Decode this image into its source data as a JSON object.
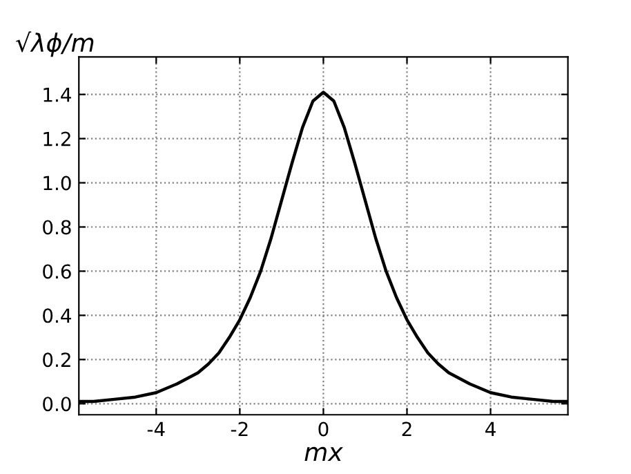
{
  "chart_data": {
    "type": "line",
    "xlabel": "mx",
    "ylabel": "√λϕ/m",
    "x": [
      -5.85,
      -5.5,
      -5,
      -4.5,
      -4,
      -3.5,
      -3,
      -2.75,
      -2.5,
      -2.25,
      -2,
      -1.75,
      -1.5,
      -1.25,
      -1,
      -0.75,
      -0.5,
      -0.25,
      0,
      0.25,
      0.5,
      0.75,
      1,
      1.25,
      1.5,
      1.75,
      2,
      2.25,
      2.5,
      2.75,
      3,
      3.5,
      4,
      4.5,
      5,
      5.5,
      5.85
    ],
    "series": [
      {
        "color": "#000000",
        "values": [
          0.01,
          0.01,
          0.02,
          0.03,
          0.05,
          0.09,
          0.14,
          0.18,
          0.23,
          0.3,
          0.38,
          0.48,
          0.6,
          0.75,
          0.92,
          1.09,
          1.25,
          1.37,
          1.41,
          1.37,
          1.25,
          1.09,
          0.92,
          0.75,
          0.6,
          0.48,
          0.38,
          0.3,
          0.23,
          0.18,
          0.14,
          0.09,
          0.05,
          0.03,
          0.02,
          0.01,
          0.01
        ]
      }
    ],
    "xlim": [
      -5.85,
      5.85
    ],
    "ylim": [
      -0.05,
      1.57
    ],
    "xticks": [
      -4,
      -2,
      0,
      2,
      4
    ],
    "yticks": [
      {
        "value": 0,
        "label": "0.0"
      },
      {
        "value": 0.2,
        "label": "0.2"
      },
      {
        "value": 0.4,
        "label": "0.4"
      },
      {
        "value": 0.6,
        "label": "0.6"
      },
      {
        "value": 0.8,
        "label": "0.8"
      },
      {
        "value": 1.0,
        "label": "1.0"
      },
      {
        "value": 1.2,
        "label": "1.2"
      },
      {
        "value": 1.4,
        "label": "1.4"
      }
    ],
    "grid": true,
    "line_style": "solid",
    "marker": "none"
  }
}
